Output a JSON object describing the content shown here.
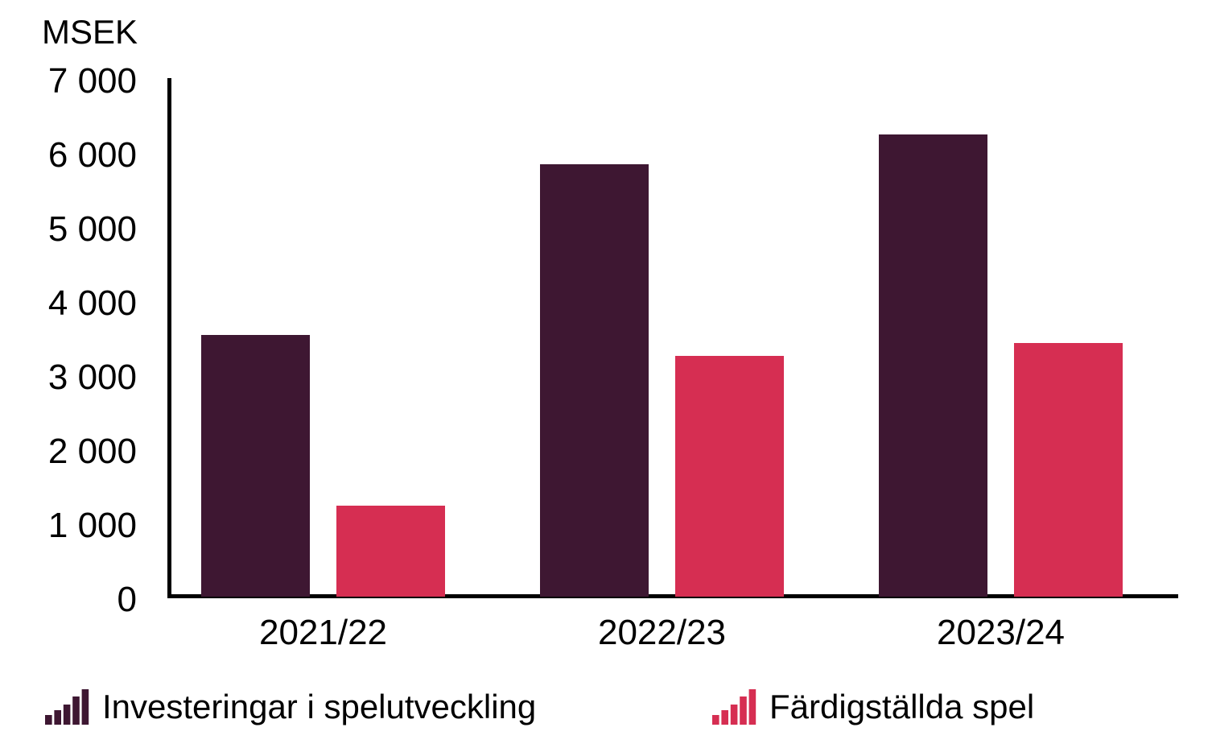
{
  "chart_data": {
    "type": "bar",
    "title": "",
    "ylabel": "MSEK",
    "xlabel": "",
    "categories": [
      "2021/22",
      "2022/23",
      "2023/24"
    ],
    "series": [
      {
        "name": "Investeringar i spelutveckling",
        "color": "#3e1732",
        "values": [
          3530,
          5840,
          6240
        ]
      },
      {
        "name": "Färdigställda spel",
        "color": "#d62e52",
        "values": [
          1230,
          3250,
          3420
        ]
      }
    ],
    "ylim": [
      0,
      7000
    ],
    "ytick_labels": [
      "0",
      "1 000",
      "2 000",
      "3 000",
      "4 000",
      "5 000",
      "6 000",
      "7 000"
    ],
    "grid": false,
    "legend_position": "bottom",
    "axis_color": "#000000",
    "text_color": "#000000"
  }
}
